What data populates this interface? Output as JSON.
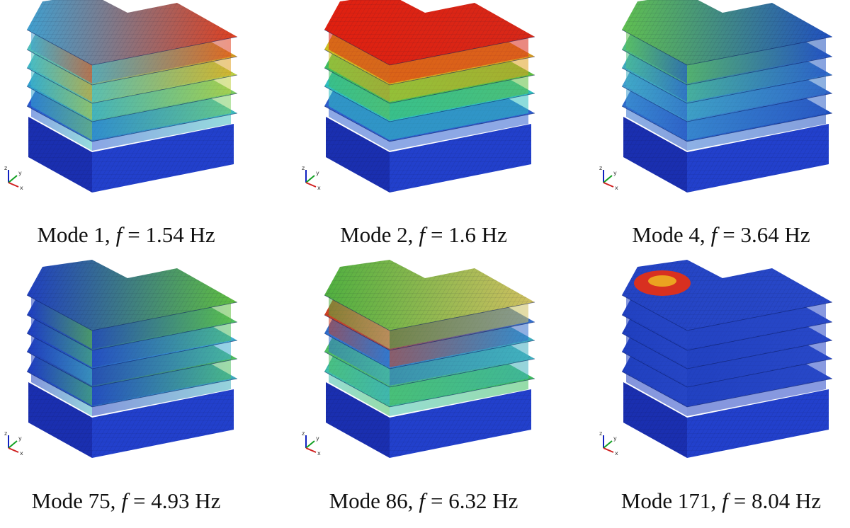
{
  "panels": [
    {
      "mode": "Mode 1,",
      "symbol": "f",
      "frequency": "= 1.54 Hz"
    },
    {
      "mode": "Mode 2,",
      "symbol": "f",
      "frequency": "= 1.6 Hz"
    },
    {
      "mode": "Mode 4,",
      "symbol": "f",
      "frequency": "= 3.64 Hz"
    },
    {
      "mode": "Mode 75,",
      "symbol": "f",
      "frequency": "= 4.93 Hz"
    },
    {
      "mode": "Mode 86,",
      "symbol": "f",
      "frequency": "= 6.32 Hz"
    },
    {
      "mode": "Mode 171,",
      "symbol": "f",
      "frequency": "= 8.04 Hz"
    }
  ],
  "triad": {
    "z": "z",
    "y": "y",
    "x": "x"
  }
}
